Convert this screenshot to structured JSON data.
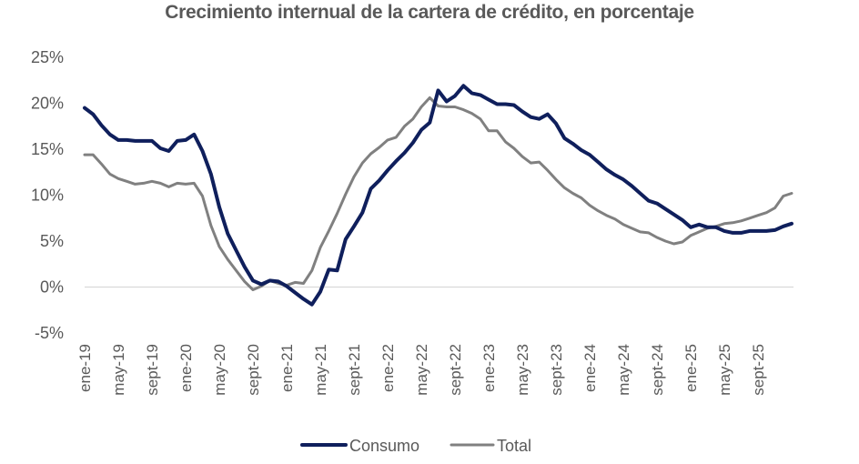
{
  "chart_data": {
    "type": "line",
    "title": "Crecimiento internual de la cartera de crédito, en porcentaje",
    "xlabel": "",
    "ylabel": "",
    "ylim": [
      -5,
      25
    ],
    "y_ticks": [
      25,
      20,
      15,
      10,
      5,
      0,
      -5
    ],
    "y_tick_labels": [
      "25%",
      "20%",
      "15%",
      "10%",
      "5%",
      "0%",
      "-5%"
    ],
    "x_tick_labels": [
      "ene-19",
      "may-19",
      "sept-19",
      "ene-20",
      "may-20",
      "sept-20",
      "ene-21",
      "may-21",
      "sept-21",
      "ene-22",
      "may-22",
      "sept-22",
      "ene-23",
      "may-23",
      "sept-23",
      "ene-24",
      "may-24",
      "sept-24",
      "ene-25",
      "may-25",
      "sept-25"
    ],
    "x_tick_month_index": [
      0,
      4,
      8,
      12,
      16,
      20,
      24,
      28,
      32,
      36,
      40,
      44,
      48,
      52,
      56,
      60,
      64,
      68,
      72,
      76,
      80
    ],
    "x_start": "ene-19",
    "x_end": "dic-25",
    "grid": false,
    "legend_position": "bottom",
    "series": [
      {
        "name": "Consumo",
        "color": "#0f1f5c",
        "values": [
          19.5,
          18.8,
          17.6,
          16.6,
          16.0,
          16.0,
          15.9,
          15.9,
          15.9,
          15.1,
          14.8,
          15.9,
          16.0,
          16.6,
          14.8,
          12.3,
          8.7,
          5.8,
          4.0,
          2.2,
          0.7,
          0.3,
          0.7,
          0.6,
          0.1,
          -0.6,
          -1.3,
          -1.9,
          -0.5,
          1.9,
          1.8,
          5.2,
          6.6,
          8.1,
          10.7,
          11.6,
          12.7,
          13.7,
          14.6,
          15.7,
          17.1,
          17.9,
          21.4,
          20.2,
          20.8,
          21.9,
          21.1,
          20.9,
          20.4,
          19.9,
          19.9,
          19.8,
          19.1,
          18.5,
          18.3,
          18.8,
          17.8,
          16.2,
          15.6,
          14.9,
          14.4,
          13.6,
          12.8,
          12.2,
          11.7,
          11.0,
          10.2,
          9.4,
          9.1,
          8.5,
          7.9,
          7.3,
          6.5,
          6.8,
          6.5,
          6.5,
          6.1,
          5.9,
          5.9,
          6.1,
          6.1,
          6.1,
          6.2,
          6.6,
          6.9
        ]
      },
      {
        "name": "Total",
        "color": "#808080",
        "values": [
          14.4,
          14.4,
          13.4,
          12.3,
          11.8,
          11.5,
          11.2,
          11.3,
          11.5,
          11.3,
          10.9,
          11.3,
          11.2,
          11.3,
          9.9,
          6.7,
          4.4,
          3.0,
          1.8,
          0.6,
          -0.3,
          0.1,
          0.7,
          0.4,
          0.2,
          0.5,
          0.4,
          1.8,
          4.3,
          6.1,
          8.0,
          10.1,
          12.0,
          13.5,
          14.5,
          15.2,
          16.0,
          16.3,
          17.5,
          18.3,
          19.6,
          20.6,
          19.7,
          19.6,
          19.6,
          19.3,
          18.9,
          18.3,
          17.0,
          17.0,
          15.8,
          15.1,
          14.2,
          13.5,
          13.6,
          12.7,
          11.7,
          10.8,
          10.2,
          9.7,
          8.9,
          8.3,
          7.8,
          7.4,
          6.8,
          6.4,
          6.0,
          5.9,
          5.4,
          5.0,
          4.7,
          4.9,
          5.6,
          6.0,
          6.4,
          6.6,
          6.9,
          7.0,
          7.2,
          7.5,
          7.8,
          8.1,
          8.6,
          9.9,
          10.2
        ]
      }
    ]
  }
}
